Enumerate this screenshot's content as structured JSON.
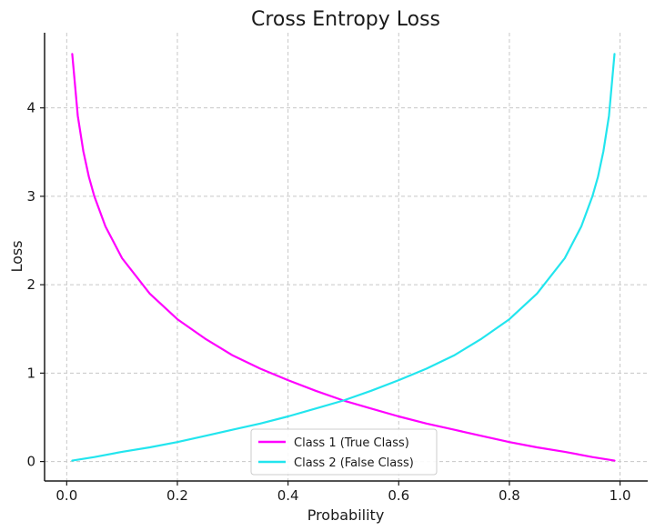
{
  "chart_data": {
    "type": "line",
    "title": "Cross Entropy Loss",
    "xlabel": "Probability",
    "ylabel": "Loss",
    "xlim": [
      -0.04,
      1.05
    ],
    "ylim": [
      -0.22,
      4.85
    ],
    "x_ticks": [
      0.0,
      0.2,
      0.4,
      0.6,
      0.8,
      1.0
    ],
    "x_tick_labels": [
      "0.0",
      "0.2",
      "0.4",
      "0.6",
      "0.8",
      "1.0"
    ],
    "y_ticks": [
      0,
      1,
      2,
      3,
      4
    ],
    "y_tick_labels": [
      "0",
      "1",
      "2",
      "3",
      "4"
    ],
    "grid": true,
    "legend_position": "bottom-center",
    "series": [
      {
        "name": "Class 1 (True Class)",
        "color": "#ff00ff",
        "x": [
          0.01,
          0.02,
          0.03,
          0.04,
          0.05,
          0.07,
          0.1,
          0.15,
          0.2,
          0.25,
          0.3,
          0.35,
          0.4,
          0.45,
          0.5,
          0.55,
          0.6,
          0.65,
          0.7,
          0.75,
          0.8,
          0.85,
          0.9,
          0.95,
          0.99
        ],
        "y": [
          4.61,
          3.91,
          3.51,
          3.22,
          3.0,
          2.66,
          2.3,
          1.9,
          1.61,
          1.39,
          1.2,
          1.05,
          0.92,
          0.8,
          0.69,
          0.6,
          0.51,
          0.43,
          0.36,
          0.29,
          0.22,
          0.16,
          0.11,
          0.05,
          0.01
        ]
      },
      {
        "name": "Class 2 (False Class)",
        "color": "#22e5ee",
        "x": [
          0.01,
          0.05,
          0.1,
          0.15,
          0.2,
          0.25,
          0.3,
          0.35,
          0.4,
          0.45,
          0.5,
          0.55,
          0.6,
          0.65,
          0.7,
          0.75,
          0.8,
          0.85,
          0.9,
          0.93,
          0.95,
          0.96,
          0.97,
          0.98,
          0.99
        ],
        "y": [
          0.01,
          0.05,
          0.11,
          0.16,
          0.22,
          0.29,
          0.36,
          0.43,
          0.51,
          0.6,
          0.69,
          0.8,
          0.92,
          1.05,
          1.2,
          1.39,
          1.61,
          1.9,
          2.3,
          2.66,
          3.0,
          3.22,
          3.51,
          3.91,
          4.61
        ]
      }
    ]
  }
}
